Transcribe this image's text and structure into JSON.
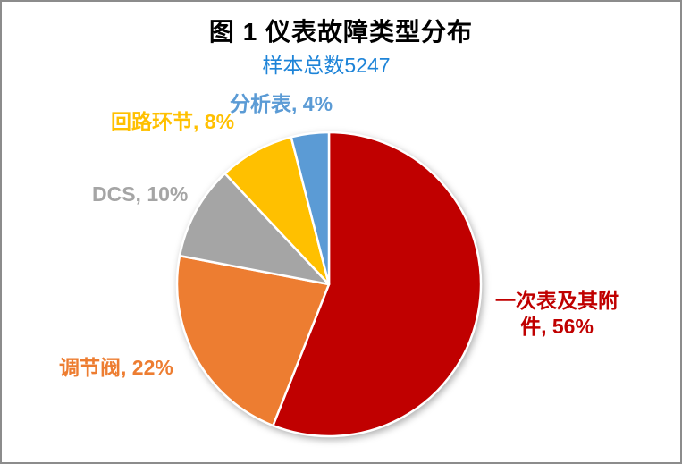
{
  "frame": {
    "border_color": "#8c8c8c",
    "background": "#ffffff"
  },
  "chart_data": {
    "type": "pie",
    "title": "图 1 仪表故障类型分布",
    "subtitle": "样本总数5247",
    "total_samples": 5247,
    "unit": "%",
    "start_angle_deg": 0,
    "direction": "clockwise",
    "title_color": "#000000",
    "subtitle_color": "#1e84d8",
    "slice_border_color": "#ffffff",
    "slices": [
      {
        "category": "一次表及其附件",
        "value": 56,
        "color": "#c00000",
        "label": "一次表及其附件, 56%"
      },
      {
        "category": "调节阀",
        "value": 22,
        "color": "#ed7d31",
        "label": "调节阀, 22%"
      },
      {
        "category": "DCS",
        "value": 10,
        "color": "#a5a5a5",
        "label": "DCS, 10%"
      },
      {
        "category": "回路环节",
        "value": 8,
        "color": "#ffc000",
        "label": "回路环节, 8%"
      },
      {
        "category": "分析表",
        "value": 4,
        "color": "#5b9bd5",
        "label": "分析表, 4%"
      }
    ]
  }
}
